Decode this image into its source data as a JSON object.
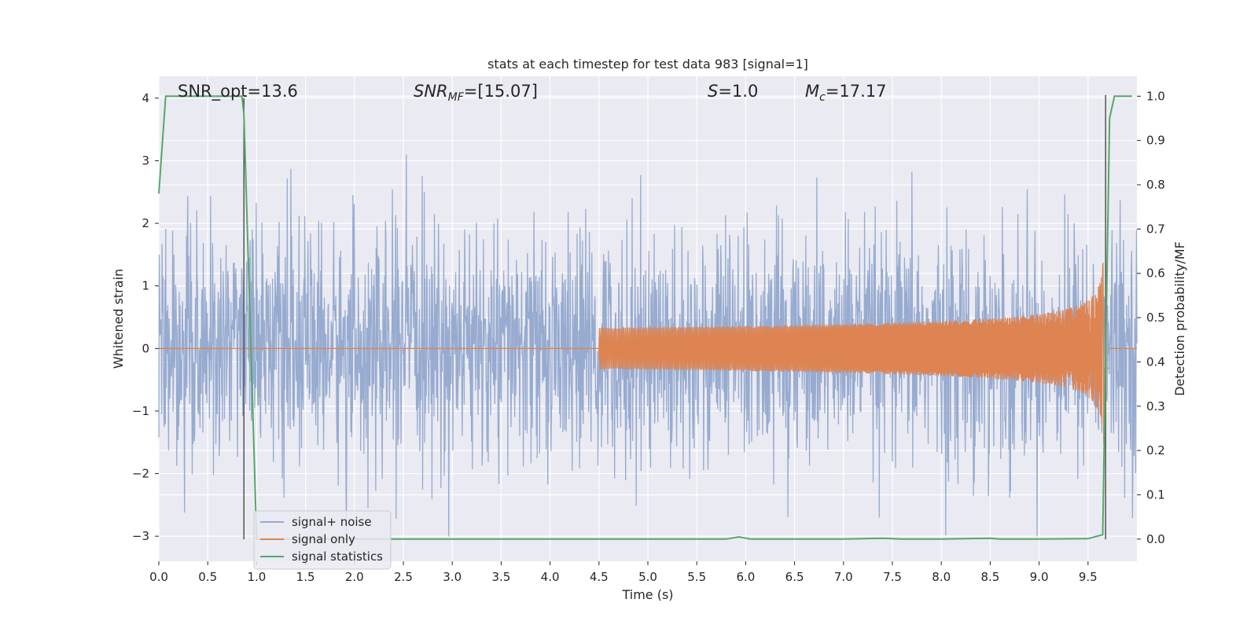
{
  "chart_data": {
    "type": "line",
    "title": "stats at each timestep for test data 983 [signal=1]",
    "xlabel": "Time (s)",
    "ylabel": "Whitened strain",
    "ylabel_right": "Detection probability/MF",
    "xlim": [
      0.0,
      10.0
    ],
    "ylim": [
      -3.4,
      4.35
    ],
    "ylim_right": [
      -0.05,
      1.045
    ],
    "x_ticks": [
      "0.0",
      "0.5",
      "1.0",
      "1.5",
      "2.0",
      "2.5",
      "3.0",
      "3.5",
      "4.0",
      "4.5",
      "5.0",
      "5.5",
      "6.0",
      "6.5",
      "7.0",
      "7.5",
      "8.0",
      "8.5",
      "9.0",
      "9.5"
    ],
    "y_ticks_left": [
      "4",
      "3",
      "2",
      "1",
      "0",
      "−1",
      "−2",
      "−3"
    ],
    "y_ticks_right": [
      "1.0",
      "0.9",
      "0.8",
      "0.7",
      "0.6",
      "0.5",
      "0.4",
      "0.3",
      "0.2",
      "0.1",
      "0.0"
    ],
    "grid": true,
    "legend_position": "lower-left",
    "annotations": {
      "snr_opt": "SNR_opt=13.6",
      "snr_mf": "=[15.07]",
      "s_val": "=1.0",
      "mc_val": "=17.17"
    },
    "series": [
      {
        "name": "signal+ noise",
        "axis": "left",
        "color": "#97abd0",
        "description_kind": "dense noise",
        "noise_sigma": 0.9
      },
      {
        "name": "signal only",
        "axis": "left",
        "color": "#dd8452",
        "kind": "chirp",
        "merger_time": 9.67,
        "peak_amplitude": 1.8
      },
      {
        "name": "signal statistics",
        "axis": "right",
        "color": "#55a868",
        "x": [
          0.0,
          0.07,
          0.1,
          0.2,
          0.5,
          0.85,
          0.87,
          1.0,
          1.5,
          2.0,
          3.0,
          4.0,
          5.0,
          5.8,
          5.93,
          6.05,
          7.0,
          7.4,
          7.6,
          8.0,
          8.5,
          8.6,
          9.0,
          9.5,
          9.65,
          9.72,
          9.77,
          9.85,
          9.95
        ],
        "values": [
          0.78,
          1.0,
          1.0,
          1.0,
          1.0,
          1.0,
          0.96,
          0.0,
          0.0,
          0.0,
          0.0,
          0.0,
          0.0,
          0.0,
          0.005,
          0.0,
          0.0,
          0.002,
          0.0,
          0.0,
          0.002,
          0.0,
          0.0,
          0.001,
          0.01,
          0.95,
          1.0,
          1.0,
          1.0
        ]
      }
    ],
    "vlines": [
      {
        "x": 0.87,
        "ymin": -3.05,
        "ymax": 4.0,
        "color": "#555555"
      },
      {
        "x": 9.68,
        "ymin": -3.05,
        "ymax": 4.05,
        "color": "#555555"
      }
    ],
    "hlines_right_axis_grid": [
      0.1,
      0.2,
      0.3,
      0.4,
      0.5,
      0.6,
      0.7,
      0.8,
      0.9,
      1.0
    ]
  }
}
